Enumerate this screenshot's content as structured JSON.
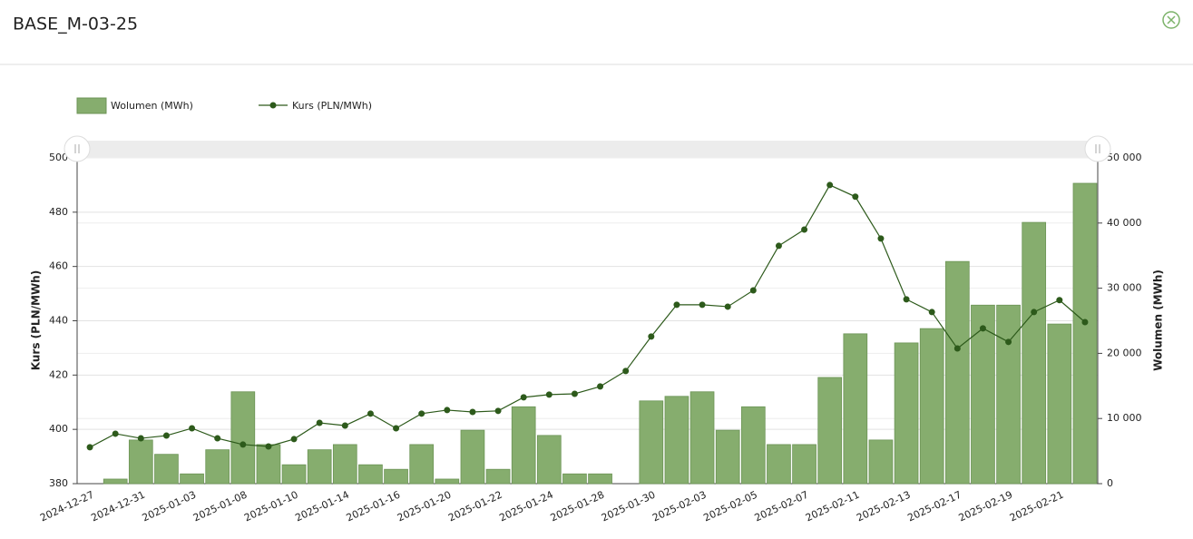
{
  "chart_data": {
    "type": "bar",
    "title": "BASE_M-03-25",
    "ylabel": "Kurs (PLN/MWh)",
    "y2label": "Wolumen (MWh)",
    "categories": [
      "2024-12-27",
      null,
      "2024-12-31",
      null,
      "2025-01-03",
      null,
      "2025-01-08",
      null,
      "2025-01-10",
      null,
      "2025-01-14",
      null,
      "2025-01-16",
      null,
      "2025-01-20",
      null,
      "2025-01-22",
      null,
      "2025-01-24",
      null,
      "2025-01-28",
      null,
      "2025-01-30",
      null,
      "2025-02-03",
      null,
      "2025-02-05",
      null,
      "2025-02-07",
      null,
      "2025-02-11",
      null,
      "2025-02-13",
      null,
      "2025-02-17",
      null,
      "2025-02-19",
      null,
      "2025-02-21",
      null
    ],
    "series": [
      {
        "name": "Wolumen (MWh)",
        "type": "bar",
        "axis": "y2",
        "color": "#86ad6e",
        "values": [
          0,
          700,
          6700,
          4500,
          1500,
          5200,
          14100,
          6000,
          2900,
          5200,
          6000,
          2900,
          2200,
          6000,
          700,
          8200,
          2200,
          11800,
          7400,
          1500,
          1500,
          0,
          12700,
          13400,
          14100,
          8200,
          11800,
          6000,
          6000,
          16300,
          23000,
          6700,
          21600,
          23800,
          34100,
          27400,
          27400,
          40100,
          24500,
          46100
        ]
      },
      {
        "name": "Kurs (PLN/MWh)",
        "type": "line",
        "color": "#2d5a1b",
        "values": [
          393.4,
          398.4,
          396.7,
          397.7,
          400.4,
          396.7,
          394.4,
          393.7,
          396.4,
          402.4,
          401.4,
          405.8,
          400.4,
          405.8,
          407.1,
          406.4,
          406.8,
          411.8,
          412.8,
          413.1,
          415.8,
          421.5,
          434.2,
          445.9,
          445.9,
          445.2,
          451.2,
          467.6,
          473.6,
          490.0,
          485.7,
          470.3,
          447.9,
          443.2,
          429.8,
          437.2,
          432.2,
          443.2,
          447.6,
          439.5
        ]
      }
    ],
    "ylim": [
      380,
      500
    ],
    "yticks": [
      380,
      400,
      420,
      440,
      460,
      480,
      500
    ],
    "y2lim": [
      0,
      50000
    ],
    "y2ticks": [
      0,
      {
        "value": 10000,
        "label": "10 000"
      },
      {
        "value": 20000,
        "label": "20 000"
      },
      {
        "value": 30000,
        "label": "30 000"
      },
      {
        "value": 40000,
        "label": "40 000"
      },
      {
        "value": 50000,
        "label": "50 000"
      }
    ],
    "grid": true
  }
}
